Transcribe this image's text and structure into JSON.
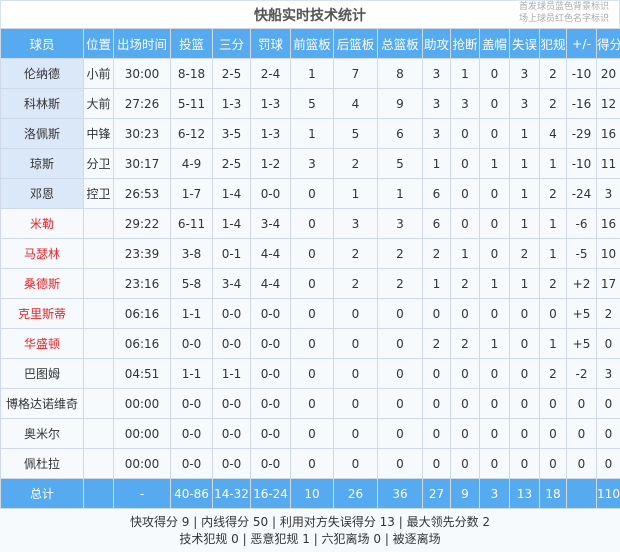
{
  "title": "快船实时技术统计",
  "legend": [
    "首发球员蓝色背景标识",
    "场上球员红色名字标识"
  ],
  "colors": {
    "header": "#55aaf0",
    "starter_bg": "#dbe8f8",
    "oncourt_name": "#e2262b"
  },
  "columns": [
    "球员",
    "位置",
    "出场时间",
    "投篮",
    "三分",
    "罚球",
    "前篮板",
    "后篮板",
    "总篮板",
    "助攻",
    "抢断",
    "盖帽",
    "失误",
    "犯规",
    "+/-",
    "得分"
  ],
  "players": [
    {
      "name": "伦纳德",
      "starter": true,
      "oncourt": false,
      "stats": [
        "小前",
        "30:00",
        "8-18",
        "2-5",
        "2-4",
        "1",
        "7",
        "8",
        "3",
        "1",
        "0",
        "3",
        "2",
        "-10",
        "20"
      ]
    },
    {
      "name": "科林斯",
      "starter": true,
      "oncourt": false,
      "stats": [
        "大前",
        "27:26",
        "5-11",
        "1-3",
        "1-3",
        "5",
        "4",
        "9",
        "3",
        "3",
        "0",
        "3",
        "2",
        "-16",
        "12"
      ]
    },
    {
      "name": "洛佩斯",
      "starter": true,
      "oncourt": false,
      "stats": [
        "中锋",
        "30:23",
        "6-12",
        "3-5",
        "1-3",
        "1",
        "5",
        "6",
        "3",
        "0",
        "0",
        "1",
        "4",
        "-29",
        "16"
      ]
    },
    {
      "name": "琼斯",
      "starter": true,
      "oncourt": false,
      "stats": [
        "分卫",
        "30:17",
        "4-9",
        "2-5",
        "1-2",
        "3",
        "2",
        "5",
        "1",
        "0",
        "1",
        "1",
        "1",
        "-10",
        "11"
      ]
    },
    {
      "name": "邓恩",
      "starter": true,
      "oncourt": false,
      "stats": [
        "控卫",
        "26:53",
        "1-7",
        "1-4",
        "0-0",
        "0",
        "1",
        "1",
        "6",
        "0",
        "0",
        "1",
        "2",
        "-24",
        "3"
      ]
    },
    {
      "name": "米勒",
      "starter": false,
      "oncourt": true,
      "stats": [
        "",
        "29:22",
        "6-11",
        "1-4",
        "3-4",
        "0",
        "3",
        "3",
        "6",
        "0",
        "0",
        "1",
        "1",
        "-6",
        "16"
      ]
    },
    {
      "name": "马瑟林",
      "starter": false,
      "oncourt": true,
      "stats": [
        "",
        "23:39",
        "3-8",
        "0-1",
        "4-4",
        "0",
        "2",
        "2",
        "2",
        "1",
        "0",
        "2",
        "1",
        "-5",
        "10"
      ]
    },
    {
      "name": "桑德斯",
      "starter": false,
      "oncourt": true,
      "stats": [
        "",
        "23:16",
        "5-8",
        "3-4",
        "4-4",
        "0",
        "2",
        "2",
        "1",
        "2",
        "1",
        "1",
        "2",
        "+2",
        "17"
      ]
    },
    {
      "name": "克里斯蒂",
      "starter": false,
      "oncourt": true,
      "stats": [
        "",
        "06:16",
        "1-1",
        "0-0",
        "0-0",
        "0",
        "0",
        "0",
        "0",
        "0",
        "0",
        "0",
        "0",
        "+5",
        "2"
      ]
    },
    {
      "name": "华盛顿",
      "starter": false,
      "oncourt": true,
      "stats": [
        "",
        "06:16",
        "0-0",
        "0-0",
        "0-0",
        "0",
        "0",
        "0",
        "2",
        "2",
        "1",
        "0",
        "1",
        "+5",
        "0"
      ]
    },
    {
      "name": "巴图姆",
      "starter": false,
      "oncourt": false,
      "stats": [
        "",
        "04:51",
        "1-1",
        "1-1",
        "0-0",
        "0",
        "0",
        "0",
        "0",
        "0",
        "0",
        "0",
        "2",
        "-2",
        "3"
      ]
    },
    {
      "name": "博格达诺维奇",
      "starter": false,
      "oncourt": false,
      "stats": [
        "",
        "00:00",
        "0-0",
        "0-0",
        "0-0",
        "0",
        "0",
        "0",
        "0",
        "0",
        "0",
        "0",
        "0",
        "0",
        "0"
      ]
    },
    {
      "name": "奥米尔",
      "starter": false,
      "oncourt": false,
      "stats": [
        "",
        "00:00",
        "0-0",
        "0-0",
        "0-0",
        "0",
        "0",
        "0",
        "0",
        "0",
        "0",
        "0",
        "0",
        "0",
        "0"
      ]
    },
    {
      "name": "佩杜拉",
      "starter": false,
      "oncourt": false,
      "stats": [
        "",
        "00:00",
        "0-0",
        "0-0",
        "0-0",
        "0",
        "0",
        "0",
        "0",
        "0",
        "0",
        "0",
        "0",
        "0",
        "0"
      ]
    }
  ],
  "totals": [
    "总计",
    "",
    "-",
    "40-86",
    "14-32",
    "16-24",
    "10",
    "26",
    "36",
    "27",
    "9",
    "3",
    "13",
    "18",
    "",
    "110"
  ],
  "footer": [
    "快攻得分 9 | 内线得分 50 | 利用对方失误得分 13 | 最大领先分数 2",
    "技术犯规 0 | 恶意犯规 1 | 六犯离场 0 | 被逐离场"
  ]
}
